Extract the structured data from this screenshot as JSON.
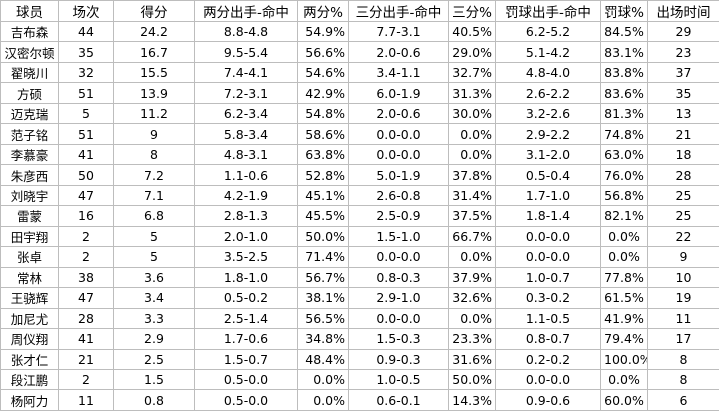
{
  "table": {
    "header": [
      "球员",
      "场次",
      "得分",
      "两分出手-命中",
      "两分%",
      "三分出手-命中",
      "三分%",
      "罚球出手-命中",
      "罚球%",
      "出场时间"
    ],
    "rows": [
      [
        "吉布森",
        "44",
        "24.2",
        "8.8-4.8",
        "54.9%",
        "7.7-3.1",
        "40.5%",
        "6.2-5.2",
        "84.5%",
        "29"
      ],
      [
        "汉密尔顿",
        "35",
        "16.7",
        "9.5-5.4",
        "56.6%",
        "2.0-0.6",
        "29.0%",
        "5.1-4.2",
        "83.1%",
        "23"
      ],
      [
        "翟晓川",
        "32",
        "15.5",
        "7.4-4.1",
        "54.6%",
        "3.4-1.1",
        "32.7%",
        "4.8-4.0",
        "83.8%",
        "37"
      ],
      [
        "方硕",
        "51",
        "13.9",
        "7.2-3.1",
        "42.9%",
        "6.0-1.9",
        "31.3%",
        "2.6-2.2",
        "83.6%",
        "35"
      ],
      [
        "迈克瑞",
        "5",
        "11.2",
        "6.2-3.4",
        "54.8%",
        "2.0-0.6",
        "30.0%",
        "3.2-2.6",
        "81.3%",
        "13"
      ],
      [
        "范子铭",
        "51",
        "9",
        "5.8-3.4",
        "58.6%",
        "0.0-0.0",
        "0.0%",
        "2.9-2.2",
        "74.8%",
        "21"
      ],
      [
        "李慕豪",
        "41",
        "8",
        "4.8-3.1",
        "63.8%",
        "0.0-0.0",
        "0.0%",
        "3.1-2.0",
        "63.0%",
        "18"
      ],
      [
        "朱彦西",
        "50",
        "7.2",
        "1.1-0.6",
        "52.8%",
        "5.0-1.9",
        "37.8%",
        "0.5-0.4",
        "76.0%",
        "28"
      ],
      [
        "刘晓宇",
        "47",
        "7.1",
        "4.2-1.9",
        "45.1%",
        "2.6-0.8",
        "31.4%",
        "1.7-1.0",
        "56.8%",
        "25"
      ],
      [
        "雷蒙",
        "16",
        "6.8",
        "2.8-1.3",
        "45.5%",
        "2.5-0.9",
        "37.5%",
        "1.8-1.4",
        "82.1%",
        "25"
      ],
      [
        "田宇翔",
        "2",
        "5",
        "2.0-1.0",
        "50.0%",
        "1.5-1.0",
        "66.7%",
        "0.0-0.0",
        "0.0%",
        "22"
      ],
      [
        "张卓",
        "2",
        "5",
        "3.5-2.5",
        "71.4%",
        "0.0-0.0",
        "0.0%",
        "0.0-0.0",
        "0.0%",
        "9"
      ],
      [
        "常林",
        "38",
        "3.6",
        "1.8-1.0",
        "56.7%",
        "0.8-0.3",
        "37.9%",
        "1.0-0.7",
        "77.8%",
        "10"
      ],
      [
        "王骁辉",
        "47",
        "3.4",
        "0.5-0.2",
        "38.1%",
        "2.9-1.0",
        "32.6%",
        "0.3-0.2",
        "61.5%",
        "19"
      ],
      [
        "加尼尤",
        "28",
        "3.3",
        "2.5-1.4",
        "56.5%",
        "0.0-0.0",
        "0.0%",
        "1.1-0.5",
        "41.9%",
        "11"
      ],
      [
        "周仪翔",
        "41",
        "2.9",
        "1.7-0.6",
        "34.8%",
        "1.5-0.3",
        "23.3%",
        "0.8-0.7",
        "79.4%",
        "17"
      ],
      [
        "张才仁",
        "21",
        "2.5",
        "1.5-0.7",
        "48.4%",
        "0.9-0.3",
        "31.6%",
        "0.2-0.2",
        "100.0%",
        "8"
      ],
      [
        "段江鹏",
        "2",
        "1.5",
        "0.5-0.0",
        "0.0%",
        "1.0-0.5",
        "50.0%",
        "0.0-0.0",
        "0.0%",
        "8"
      ],
      [
        "杨阿力",
        "11",
        "0.8",
        "0.5-0.0",
        "0.0%",
        "0.6-0.1",
        "14.3%",
        "0.9-0.6",
        "60.0%",
        "6"
      ]
    ]
  }
}
